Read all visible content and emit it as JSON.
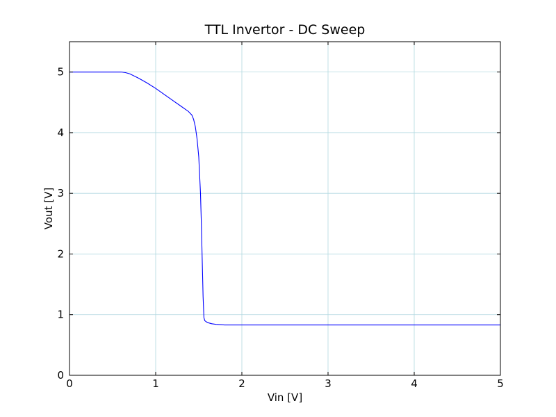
{
  "chart_data": {
    "type": "line",
    "title": "TTL Invertor - DC Sweep",
    "xlabel": "Vin [V]",
    "ylabel": "Vout [V]",
    "xlim": [
      0,
      5
    ],
    "ylim": [
      0,
      5.5
    ],
    "x_ticks": [
      "0",
      "1",
      "2",
      "3",
      "4",
      "5"
    ],
    "y_ticks": [
      "0",
      "1",
      "2",
      "3",
      "4",
      "5"
    ],
    "grid": true,
    "colors": {
      "series": "#0000ff",
      "grid": "#b0d8e0"
    },
    "series": [
      {
        "x": [
          0,
          0.1,
          0.2,
          0.3,
          0.4,
          0.5,
          0.6,
          0.65,
          0.7,
          0.8,
          0.9,
          1.0,
          1.1,
          1.2,
          1.3,
          1.38,
          1.42,
          1.44,
          1.46,
          1.48,
          1.5,
          1.52,
          1.53,
          1.54,
          1.55,
          1.56,
          1.57,
          1.6,
          1.65,
          1.7,
          1.8,
          2.0,
          2.5,
          3.0,
          3.5,
          4.0,
          4.5,
          5.0
        ],
        "y": [
          5.0,
          5.0,
          5.0,
          5.0,
          5.0,
          5.0,
          5.0,
          4.99,
          4.97,
          4.9,
          4.82,
          4.73,
          4.63,
          4.53,
          4.43,
          4.35,
          4.29,
          4.22,
          4.1,
          3.9,
          3.6,
          3.0,
          2.5,
          1.9,
          1.3,
          0.95,
          0.9,
          0.87,
          0.85,
          0.84,
          0.83,
          0.83,
          0.83,
          0.83,
          0.83,
          0.83,
          0.83,
          0.83
        ]
      }
    ]
  }
}
